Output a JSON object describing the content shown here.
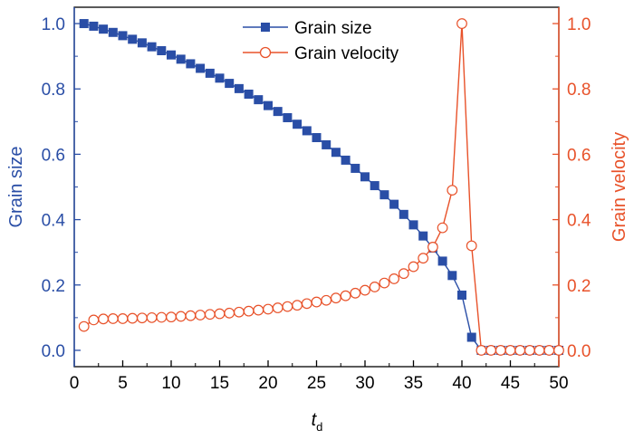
{
  "colors": {
    "left_axis": "#2a4ea6",
    "right_axis": "#e8522a",
    "frame": "#000000"
  },
  "chart_data": {
    "type": "line",
    "xlabel": "t",
    "xlabel_subscript": "d",
    "ylabel_left": "Grain size",
    "ylabel_right": "Grain velocity",
    "xlim": [
      0,
      50
    ],
    "ylim_left": [
      -0.05,
      1.05
    ],
    "ylim_right": [
      -0.05,
      1.05
    ],
    "x_ticks": [
      "0",
      "5",
      "10",
      "15",
      "20",
      "25",
      "30",
      "35",
      "40",
      "45",
      "50"
    ],
    "y_left_ticks": [
      "0.0",
      "0.2",
      "0.4",
      "0.6",
      "0.8",
      "1.0"
    ],
    "y_right_ticks": [
      "0.0",
      "0.2",
      "0.4",
      "0.6",
      "0.8",
      "1.0"
    ],
    "legend_position": "top-center",
    "grid": false,
    "x": [
      1,
      2,
      3,
      4,
      5,
      6,
      7,
      8,
      9,
      10,
      11,
      12,
      13,
      14,
      15,
      16,
      17,
      18,
      19,
      20,
      21,
      22,
      23,
      24,
      25,
      26,
      27,
      28,
      29,
      30,
      31,
      32,
      33,
      34,
      35,
      36,
      37,
      38,
      39,
      40,
      41,
      42,
      43,
      44,
      45,
      46,
      47,
      48,
      49,
      50
    ],
    "series": [
      {
        "name": "Grain size",
        "axis": "left",
        "marker": "filled-square",
        "color": "#2a4ea6",
        "values": [
          1.0,
          0.992,
          0.983,
          0.973,
          0.963,
          0.952,
          0.941,
          0.929,
          0.917,
          0.904,
          0.891,
          0.877,
          0.863,
          0.848,
          0.833,
          0.817,
          0.801,
          0.784,
          0.767,
          0.749,
          0.731,
          0.712,
          0.692,
          0.672,
          0.651,
          0.629,
          0.606,
          0.582,
          0.557,
          0.531,
          0.504,
          0.476,
          0.447,
          0.416,
          0.384,
          0.35,
          0.313,
          0.273,
          0.229,
          0.169,
          0.04,
          0.0,
          0.0,
          0.0,
          0.0,
          0.0,
          0.0,
          0.0,
          0.0,
          0.0
        ]
      },
      {
        "name": "Grain velocity",
        "axis": "right",
        "marker": "open-circle",
        "color": "#e8522a",
        "values": [
          0.073,
          0.093,
          0.096,
          0.097,
          0.097,
          0.098,
          0.099,
          0.1,
          0.101,
          0.102,
          0.104,
          0.106,
          0.108,
          0.11,
          0.112,
          0.114,
          0.117,
          0.12,
          0.123,
          0.126,
          0.13,
          0.134,
          0.138,
          0.143,
          0.148,
          0.153,
          0.16,
          0.167,
          0.175,
          0.184,
          0.194,
          0.206,
          0.219,
          0.235,
          0.256,
          0.282,
          0.316,
          0.375,
          0.49,
          1.0,
          0.32,
          0.0,
          0.0,
          0.0,
          0.0,
          0.0,
          0.0,
          0.0,
          0.0,
          0.0
        ]
      }
    ]
  }
}
